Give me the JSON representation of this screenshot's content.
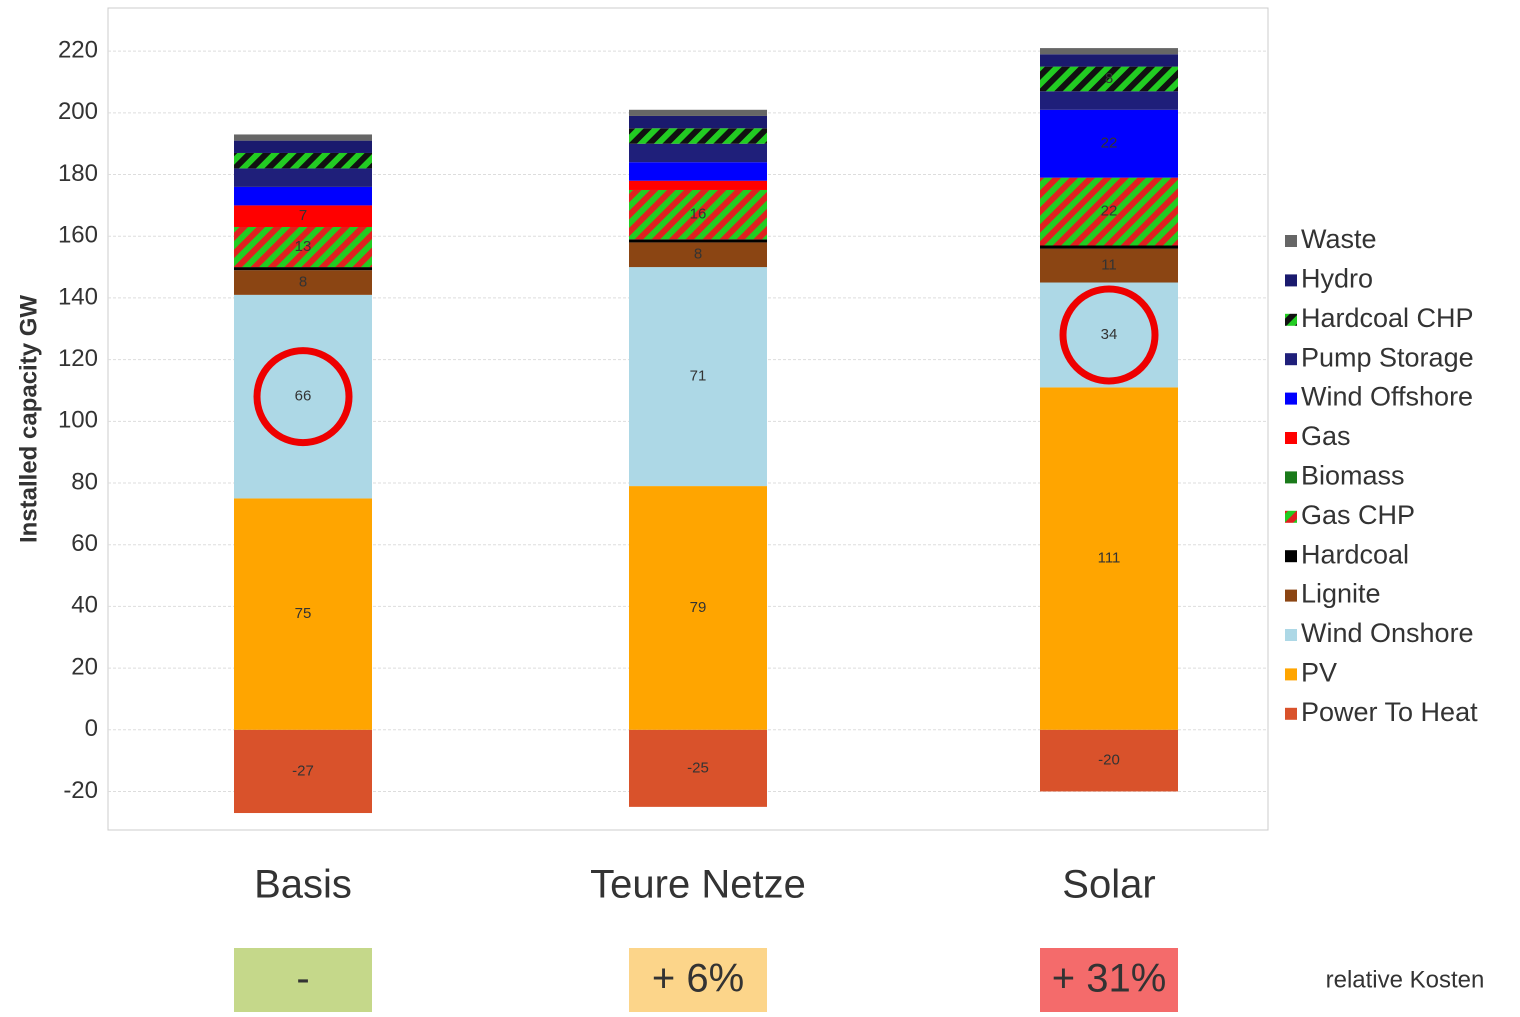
{
  "chart_data": {
    "type": "bar",
    "stacked": true,
    "y_label": "Installed capacity GW",
    "categories": [
      "Basis",
      "Teure Netze",
      "Solar"
    ],
    "ylim": [
      -32.5,
      234
    ],
    "yticks": [
      -20,
      0,
      20,
      40,
      60,
      80,
      100,
      120,
      140,
      160,
      180,
      200,
      220
    ],
    "grid": true,
    "legend": "right",
    "series": [
      {
        "name": "Power To Heat",
        "color": "#d9522b",
        "values": [
          -27,
          -25,
          -20
        ]
      },
      {
        "name": "PV",
        "color": "#ffa500",
        "values": [
          75,
          79,
          111
        ]
      },
      {
        "name": "Wind Onshore",
        "color": "#add8e6",
        "values": [
          66,
          71,
          34
        ]
      },
      {
        "name": "Lignite",
        "color": "#8b4513",
        "values": [
          8,
          8,
          11
        ]
      },
      {
        "name": "Hardcoal",
        "color": "#000000",
        "values": [
          1,
          1,
          1
        ]
      },
      {
        "name": "Gas CHP",
        "color": "#e02020",
        "hatch_color": "#22cc22",
        "values": [
          13,
          16,
          22
        ]
      },
      {
        "name": "Biomass",
        "color": "#1a7a1a",
        "values": [
          0,
          0,
          0
        ]
      },
      {
        "name": "Gas",
        "color": "#ff0000",
        "values": [
          7,
          3,
          0
        ]
      },
      {
        "name": "Wind Offshore",
        "color": "#0000ff",
        "values": [
          6,
          6,
          22
        ]
      },
      {
        "name": "Pump Storage",
        "color": "#1f1f7a",
        "values": [
          6,
          6,
          6
        ]
      },
      {
        "name": "Hardcoal CHP",
        "color": "#111111",
        "hatch_color": "#22cc22",
        "values": [
          5,
          5,
          8
        ]
      },
      {
        "name": "Hydro",
        "color": "#1a1a6e",
        "values": [
          4,
          4,
          4
        ]
      },
      {
        "name": "Waste",
        "color": "#666666",
        "values": [
          2,
          2,
          2
        ]
      }
    ],
    "cost_title": "relative Kosten",
    "cost_labels": [
      "-",
      "+ 6%",
      "+ 31%"
    ],
    "cost_colors": [
      "#c5d88a",
      "#fcd58a",
      "#f46b6b"
    ]
  }
}
